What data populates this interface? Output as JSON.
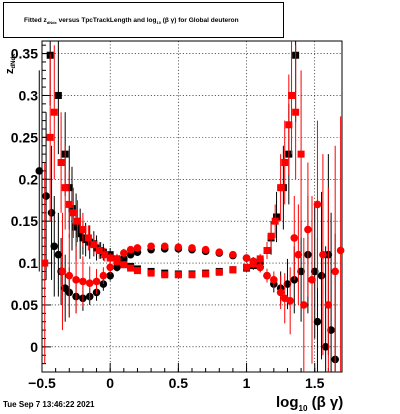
{
  "chart_data": {
    "type": "scatter",
    "title": {
      "prefix": "Fitted",
      "z_symbol": "z",
      "z_subscript": "dNdx",
      "middle": "versus TpcTrackLength and log",
      "log_subscript": "10",
      "suffix": "(β γ) for Global deuteron"
    },
    "xlabel": {
      "main": "log",
      "sub": "10",
      "rest": "(β γ)"
    },
    "ylabel": {
      "main": "z",
      "sub": "dNdx"
    },
    "xlim": [
      -0.5,
      1.7
    ],
    "ylim": [
      -0.03,
      0.365
    ],
    "x_ticks": [
      -0.5,
      0,
      0.5,
      1,
      1.5
    ],
    "x_tick_labels": [
      "−0.5",
      "0",
      "0.5",
      "1",
      "1.5"
    ],
    "y_ticks": [
      0,
      0.05,
      0.1,
      0.15,
      0.2,
      0.25,
      0.3,
      0.35
    ],
    "y_tick_labels": [
      "0",
      "0.05",
      "0.1",
      "0.15",
      "0.2",
      "0.25",
      "0.3",
      "0.35"
    ],
    "grid": true,
    "series": [
      {
        "color": "#000000",
        "marker": "square",
        "points": [
          [
            -0.44,
            0.348,
            0.06
          ],
          [
            -0.38,
            0.3,
            0.07
          ],
          [
            -0.33,
            0.23,
            0.05
          ],
          [
            -0.3,
            0.19,
            0.05
          ],
          [
            -0.28,
            0.165,
            0.05
          ],
          [
            -0.25,
            0.143,
            0.04
          ],
          [
            -0.22,
            0.135,
            0.03
          ],
          [
            -0.2,
            0.13,
            0.02
          ],
          [
            -0.18,
            0.128,
            0.02
          ],
          [
            -0.15,
            0.125,
            0.02
          ],
          [
            -0.12,
            0.123,
            0.015
          ],
          [
            -0.1,
            0.118,
            0.015
          ],
          [
            -0.07,
            0.115,
            0.01
          ],
          [
            -0.05,
            0.113,
            0.01
          ],
          [
            0.0,
            0.11,
            0.008
          ],
          [
            0.05,
            0.105,
            0.006
          ],
          [
            0.1,
            0.1,
            0.005
          ],
          [
            0.15,
            0.096,
            0.004
          ],
          [
            0.2,
            0.093,
            0.004
          ],
          [
            0.3,
            0.09,
            0.003
          ],
          [
            0.4,
            0.088,
            0.003
          ],
          [
            0.5,
            0.087,
            0.003
          ],
          [
            0.6,
            0.087,
            0.003
          ],
          [
            0.7,
            0.088,
            0.003
          ],
          [
            0.8,
            0.09,
            0.003
          ],
          [
            0.9,
            0.092,
            0.004
          ],
          [
            1.0,
            0.094,
            0.004
          ],
          [
            1.05,
            0.097,
            0.005
          ],
          [
            1.1,
            0.102,
            0.006
          ],
          [
            1.15,
            0.115,
            0.01
          ],
          [
            1.18,
            0.13,
            0.02
          ],
          [
            1.22,
            0.155,
            0.03
          ],
          [
            1.27,
            0.19,
            0.05
          ],
          [
            1.31,
            0.23,
            0.06
          ],
          [
            1.36,
            0.348,
            0.08
          ]
        ]
      },
      {
        "color": "#000000",
        "marker": "circle",
        "points": [
          [
            -0.52,
            0.21,
            0.12
          ],
          [
            -0.47,
            0.18,
            0.1
          ],
          [
            -0.43,
            0.16,
            0.08
          ],
          [
            -0.41,
            0.12,
            0.06
          ],
          [
            -0.38,
            0.11,
            0.05
          ],
          [
            -0.36,
            0.09,
            0.04
          ],
          [
            -0.33,
            0.07,
            0.04
          ],
          [
            -0.3,
            0.065,
            0.03
          ],
          [
            -0.25,
            0.06,
            0.02
          ],
          [
            -0.2,
            0.058,
            0.015
          ],
          [
            -0.15,
            0.06,
            0.01
          ],
          [
            -0.1,
            0.065,
            0.01
          ],
          [
            -0.05,
            0.075,
            0.008
          ],
          [
            0.0,
            0.085,
            0.006
          ],
          [
            0.05,
            0.095,
            0.005
          ],
          [
            0.1,
            0.105,
            0.005
          ],
          [
            0.15,
            0.11,
            0.004
          ],
          [
            0.2,
            0.113,
            0.004
          ],
          [
            0.3,
            0.116,
            0.003
          ],
          [
            0.4,
            0.117,
            0.003
          ],
          [
            0.5,
            0.117,
            0.003
          ],
          [
            0.6,
            0.116,
            0.003
          ],
          [
            0.7,
            0.114,
            0.003
          ],
          [
            0.8,
            0.112,
            0.003
          ],
          [
            0.9,
            0.109,
            0.004
          ],
          [
            1.0,
            0.106,
            0.004
          ],
          [
            1.05,
            0.102,
            0.005
          ],
          [
            1.1,
            0.095,
            0.006
          ],
          [
            1.15,
            0.085,
            0.008
          ],
          [
            1.2,
            0.075,
            0.01
          ],
          [
            1.25,
            0.07,
            0.02
          ],
          [
            1.3,
            0.075,
            0.03
          ],
          [
            1.35,
            0.08,
            0.04
          ],
          [
            1.4,
            0.09,
            0.06
          ],
          [
            1.45,
            0.11,
            0.07
          ],
          [
            1.5,
            0.09,
            0.08
          ],
          [
            1.52,
            0.03,
            0.1
          ],
          [
            1.55,
            0.085,
            0.1
          ],
          [
            1.58,
            0.0,
            0.12
          ],
          [
            1.6,
            0.11,
            0.12
          ],
          [
            1.62,
            0.02,
            0.14
          ],
          [
            1.65,
            -0.015,
            0.15
          ]
        ]
      },
      {
        "color": "#ff0000",
        "marker": "square",
        "points": [
          [
            -0.48,
            0.1,
            0.12
          ],
          [
            -0.44,
            0.25,
            0.1
          ],
          [
            -0.41,
            0.28,
            0.08
          ],
          [
            -0.36,
            0.22,
            0.06
          ],
          [
            -0.33,
            0.19,
            0.05
          ],
          [
            -0.3,
            0.17,
            0.04
          ],
          [
            -0.27,
            0.16,
            0.03
          ],
          [
            -0.24,
            0.15,
            0.025
          ],
          [
            -0.2,
            0.14,
            0.02
          ],
          [
            -0.16,
            0.13,
            0.015
          ],
          [
            -0.12,
            0.122,
            0.012
          ],
          [
            -0.08,
            0.115,
            0.01
          ],
          [
            -0.04,
            0.11,
            0.008
          ],
          [
            0.0,
            0.106,
            0.006
          ],
          [
            0.05,
            0.102,
            0.005
          ],
          [
            0.1,
            0.098,
            0.004
          ],
          [
            0.15,
            0.094,
            0.004
          ],
          [
            0.2,
            0.091,
            0.003
          ],
          [
            0.3,
            0.088,
            0.003
          ],
          [
            0.4,
            0.086,
            0.003
          ],
          [
            0.5,
            0.086,
            0.003
          ],
          [
            0.6,
            0.086,
            0.003
          ],
          [
            0.7,
            0.087,
            0.003
          ],
          [
            0.8,
            0.089,
            0.003
          ],
          [
            0.9,
            0.092,
            0.004
          ],
          [
            1.0,
            0.095,
            0.004
          ],
          [
            1.05,
            0.099,
            0.005
          ],
          [
            1.1,
            0.105,
            0.006
          ],
          [
            1.15,
            0.115,
            0.01
          ],
          [
            1.18,
            0.132,
            0.015
          ],
          [
            1.21,
            0.15,
            0.02
          ],
          [
            1.25,
            0.19,
            0.04
          ],
          [
            1.28,
            0.22,
            0.05
          ],
          [
            1.31,
            0.265,
            0.06
          ],
          [
            1.33,
            0.3,
            0.07
          ],
          [
            1.36,
            0.28,
            0.08
          ],
          [
            1.4,
            0.23,
            0.1
          ]
        ]
      },
      {
        "color": "#ff0000",
        "marker": "circle",
        "points": [
          [
            -0.35,
            0.09,
            0.07
          ],
          [
            -0.3,
            0.085,
            0.05
          ],
          [
            -0.25,
            0.08,
            0.04
          ],
          [
            -0.2,
            0.078,
            0.03
          ],
          [
            -0.15,
            0.076,
            0.02
          ],
          [
            -0.1,
            0.078,
            0.015
          ],
          [
            -0.05,
            0.085,
            0.01
          ],
          [
            0.0,
            0.095,
            0.008
          ],
          [
            0.05,
            0.105,
            0.006
          ],
          [
            0.1,
            0.112,
            0.005
          ],
          [
            0.15,
            0.116,
            0.004
          ],
          [
            0.2,
            0.118,
            0.004
          ],
          [
            0.3,
            0.12,
            0.003
          ],
          [
            0.4,
            0.12,
            0.003
          ],
          [
            0.5,
            0.119,
            0.003
          ],
          [
            0.6,
            0.118,
            0.003
          ],
          [
            0.7,
            0.116,
            0.003
          ],
          [
            0.8,
            0.113,
            0.003
          ],
          [
            0.9,
            0.11,
            0.004
          ],
          [
            1.0,
            0.106,
            0.004
          ],
          [
            1.05,
            0.102,
            0.005
          ],
          [
            1.1,
            0.095,
            0.006
          ],
          [
            1.15,
            0.085,
            0.008
          ],
          [
            1.2,
            0.08,
            0.01
          ],
          [
            1.25,
            0.065,
            0.02
          ],
          [
            1.28,
            0.058,
            0.03
          ],
          [
            1.32,
            0.055,
            0.04
          ],
          [
            1.35,
            0.13,
            0.05
          ],
          [
            1.38,
            0.11,
            0.06
          ],
          [
            1.42,
            0.05,
            0.08
          ],
          [
            1.45,
            0.14,
            0.08
          ],
          [
            1.48,
            0.08,
            0.1
          ],
          [
            1.52,
            0.17,
            0.1
          ],
          [
            1.56,
            0.11,
            0.12
          ],
          [
            1.6,
            0.05,
            0.14
          ],
          [
            1.65,
            0.09,
            0.15
          ],
          [
            1.69,
            0.115,
            0.16
          ]
        ]
      }
    ],
    "footer": "Tue Sep  7 13:46:22 2021"
  }
}
